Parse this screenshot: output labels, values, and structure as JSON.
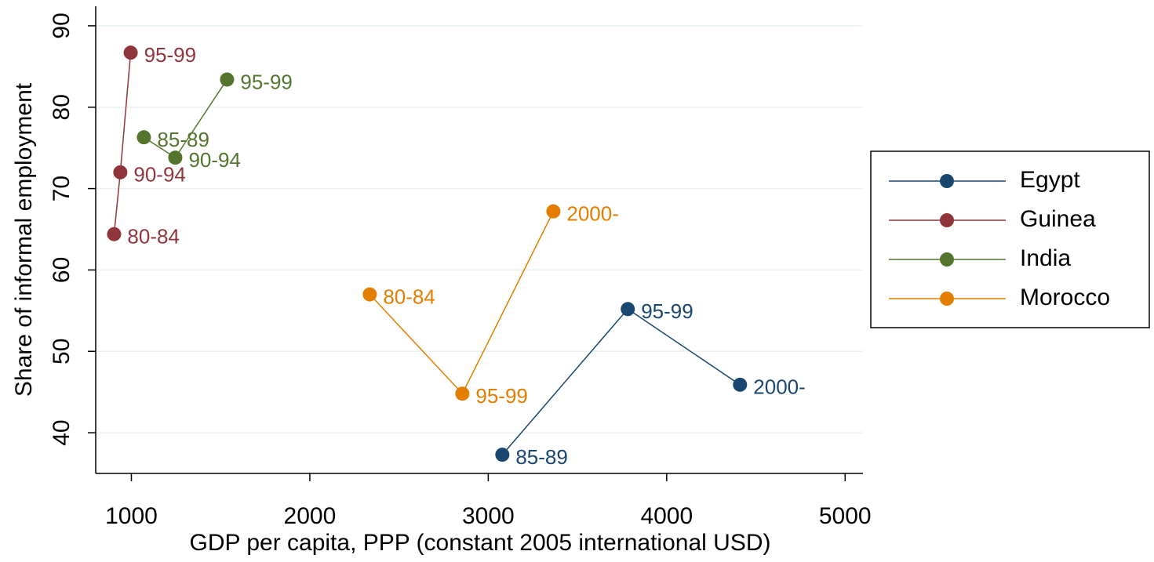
{
  "chart_data": {
    "type": "connected-scatter",
    "xlabel": "GDP per capita, PPP (constant 2005 international USD)",
    "ylabel": "Share of informal employment",
    "xlim": [
      800,
      5100
    ],
    "xticks": [
      1000,
      2000,
      3000,
      4000,
      5000
    ],
    "ylim": [
      35,
      92.4
    ],
    "yticks": [
      40,
      50,
      60,
      70,
      80,
      90
    ],
    "grid": true,
    "legend": "right",
    "series": [
      {
        "name": "Egypt",
        "color": "#1a476f",
        "x": [
          3079,
          3782,
          4411
        ],
        "values": [
          37.3,
          55.2,
          45.9
        ],
        "labels": [
          "85-89",
          "95-99",
          "2000-"
        ]
      },
      {
        "name": "Guinea",
        "color": "#90353b",
        "x": [
          903,
          938,
          996
        ],
        "values": [
          64.4,
          72.0,
          86.7
        ],
        "labels": [
          "80-84",
          "90-94",
          "95-99"
        ]
      },
      {
        "name": "India",
        "color": "#55752f",
        "x": [
          1070,
          1246,
          1536
        ],
        "values": [
          76.3,
          73.8,
          83.4
        ],
        "labels": [
          "85-89",
          "90-94",
          "95-99"
        ]
      },
      {
        "name": "Morocco",
        "color": "#e37e00",
        "x": [
          2336,
          2855,
          3365
        ],
        "values": [
          57.0,
          44.8,
          67.2
        ],
        "labels": [
          "80-84",
          "95-99",
          "2000-"
        ]
      }
    ]
  }
}
